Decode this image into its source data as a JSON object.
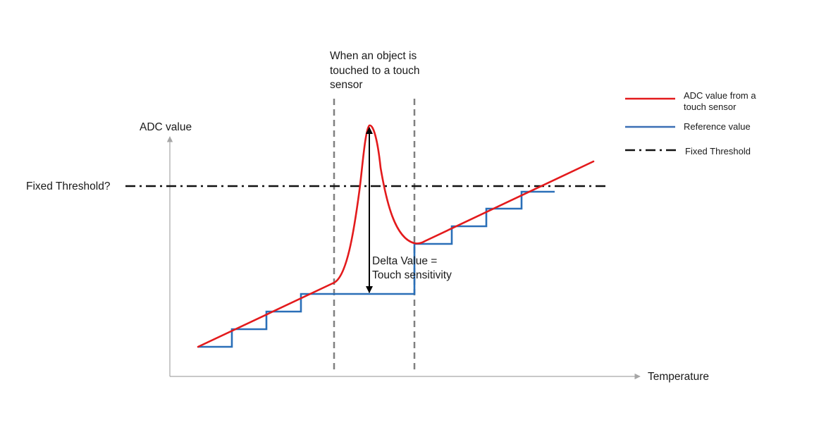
{
  "axes": {
    "y_label": "ADC value",
    "x_label": "Temperature"
  },
  "threshold_question": "Fixed Threshold?",
  "touch_event": {
    "caption_line1": "When an object is",
    "caption_line2": "touched to a touch",
    "caption_line3": "sensor"
  },
  "delta": {
    "line1": "Delta Value =",
    "line2": "Touch sensitivity"
  },
  "legend": [
    {
      "line1": "ADC value from a",
      "line2": "touch sensor",
      "style": "solid",
      "color": "#e31a1c"
    },
    {
      "line1": "Reference value",
      "line2": "",
      "style": "solid",
      "color": "#3a6fb5"
    },
    {
      "line1": "Fixed Threshold",
      "line2": "",
      "style": "dash-dot",
      "color": "#111111"
    }
  ],
  "colors": {
    "adc_curve": "#e31a1c",
    "reference": "#2a6fb8",
    "reference_dark": "#5677a8",
    "threshold": "#111111",
    "marker_lines": "#808080",
    "axis": "#a6a6a6"
  }
}
